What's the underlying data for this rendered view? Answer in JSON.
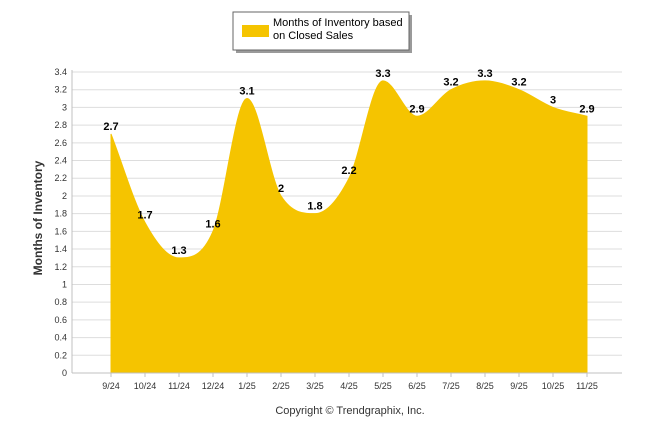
{
  "chart_data": {
    "type": "area",
    "title": "",
    "categories": [
      "9/24",
      "10/24",
      "11/24",
      "12/24",
      "1/25",
      "2/25",
      "3/25",
      "4/25",
      "5/25",
      "6/25",
      "7/25",
      "8/25",
      "9/25",
      "10/25",
      "11/25"
    ],
    "series": [
      {
        "name": "Months of Inventory based on Closed Sales",
        "values": [
          2.7,
          1.7,
          1.3,
          1.6,
          3.1,
          2,
          1.8,
          2.2,
          3.3,
          2.9,
          3.2,
          3.3,
          3.2,
          3,
          2.9
        ],
        "labels": [
          "2.7",
          "1.7",
          "1.3",
          "1.6",
          "3.1",
          "2",
          "1.8",
          "2.2",
          "3.3",
          "2.9",
          "3.2",
          "3.3",
          "3.2",
          "3",
          "2.9"
        ],
        "color": "#F5C400"
      }
    ],
    "ylabel": "Months of Inventory",
    "xlabel": "",
    "ylim": [
      0,
      3.4
    ],
    "yticks": [
      "0",
      "0.2",
      "0.4",
      "0.6",
      "0.8",
      "1",
      "1.2",
      "1.4",
      "1.6",
      "1.8",
      "2",
      "2.2",
      "2.4",
      "2.6",
      "2.8",
      "3",
      "3.2",
      "3.4"
    ],
    "grid": true,
    "legend_position": "top-center"
  },
  "legend": {
    "line1": "Months of Inventory based",
    "line2": "on Closed Sales"
  },
  "credit": "Copyright © Trendgraphix, Inc.",
  "colors": {
    "area": "#F5C400",
    "grid": "#dddddd"
  }
}
